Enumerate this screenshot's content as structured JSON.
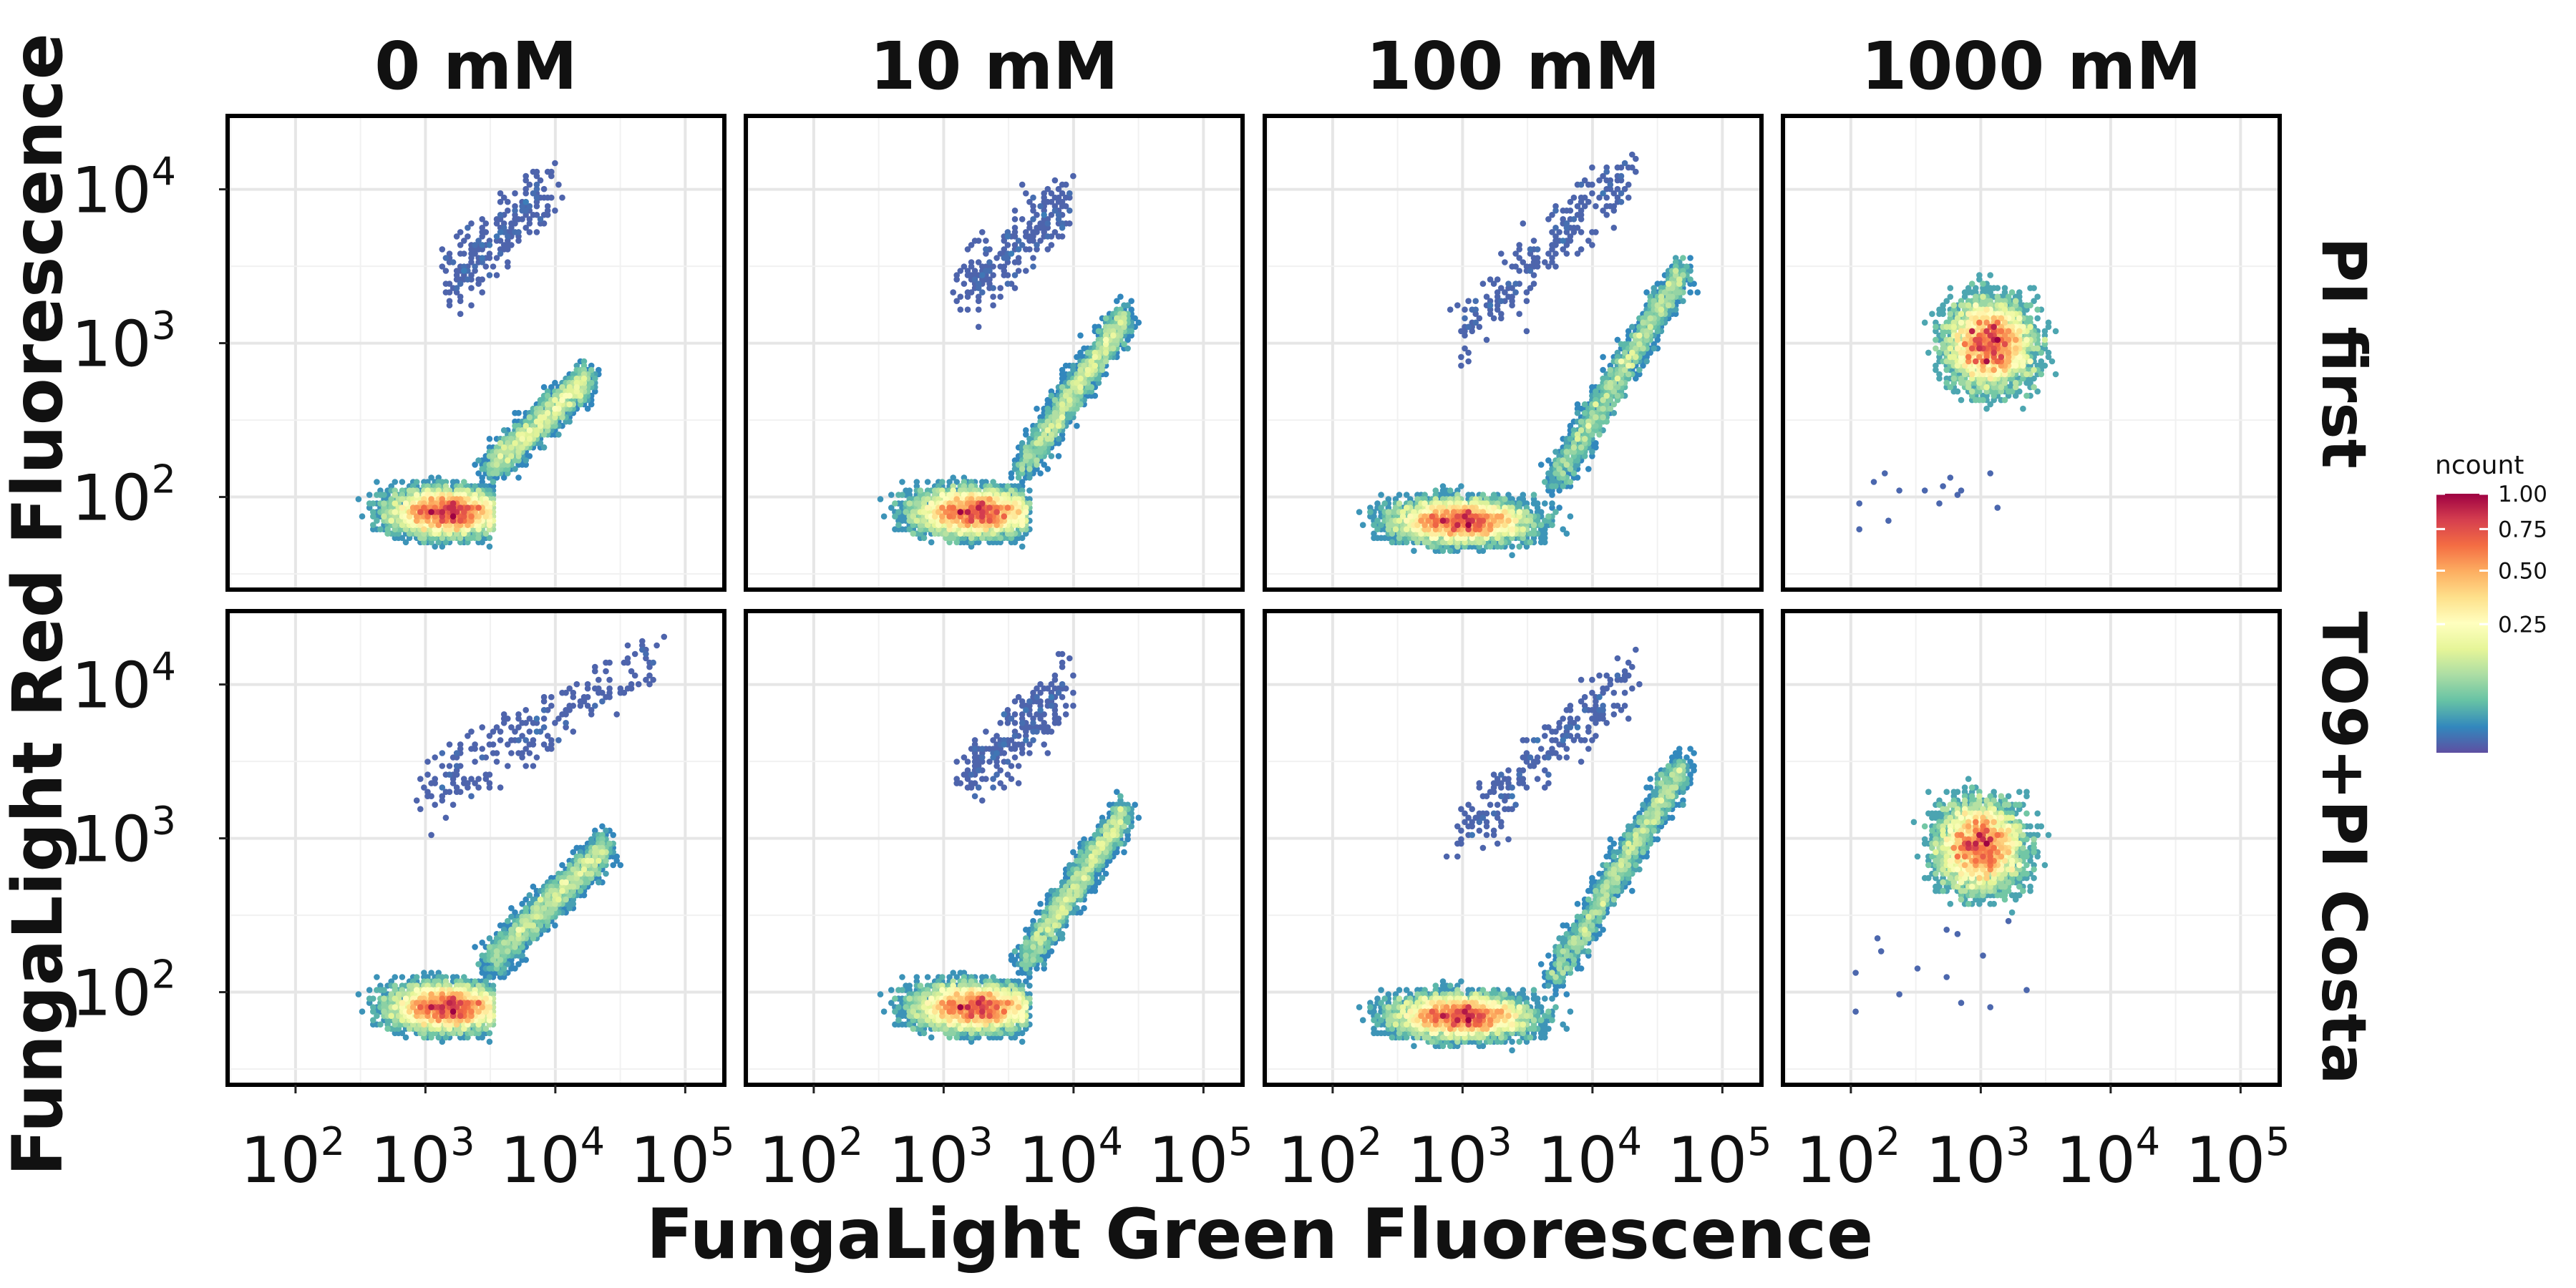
{
  "chart_data": {
    "type": "heatmap",
    "subtype": "faceted hexbin density (log-log)",
    "xlabel": "FungaLight Green Fluorescence",
    "ylabel": "FungaLight Red Fluorescence",
    "x_scale": "log10",
    "y_scale": "log10",
    "xlim": [
      30,
      200000
    ],
    "ylim": [
      25,
      30000
    ],
    "x_ticks": [
      100,
      1000,
      10000,
      100000
    ],
    "y_ticks": [
      100,
      1000,
      10000
    ],
    "x_tick_labels": [
      {
        "base": "10",
        "exp": "2"
      },
      {
        "base": "10",
        "exp": "3"
      },
      {
        "base": "10",
        "exp": "4"
      },
      {
        "base": "10",
        "exp": "5"
      }
    ],
    "y_tick_labels": [
      {
        "base": "10",
        "exp": "2"
      },
      {
        "base": "10",
        "exp": "3"
      },
      {
        "base": "10",
        "exp": "4"
      }
    ],
    "grid": true,
    "columns": [
      "0 mM",
      "10 mM",
      "100 mM",
      "1000 mM"
    ],
    "rows": [
      "PI first",
      "TO9+PI Costa"
    ],
    "legend": {
      "title": "ncount",
      "placement": "right",
      "ticks": [
        1.0,
        0.75,
        0.5,
        0.25
      ],
      "tick_labels": [
        "1.00",
        "0.75",
        "0.50",
        "0.25"
      ],
      "colorscale": [
        "#5e4fa2",
        "#3288bd",
        "#66c2a5",
        "#abdda4",
        "#e6f598",
        "#ffffbf",
        "#fee08b",
        "#fdae61",
        "#f46d43",
        "#d53e4f",
        "#9e0142"
      ]
    },
    "panels": [
      {
        "row": "PI first",
        "column": "0 mM",
        "live_population": {
          "x_range": [
            60,
            3000
          ],
          "y_range": [
            40,
            120
          ],
          "peak": [
            1500,
            80
          ]
        },
        "diagonal_tail": {
          "from": [
            3000,
            150
          ],
          "to": [
            18000,
            600
          ]
        },
        "dead_population": {
          "x_range": [
            1500,
            9000
          ],
          "y_range": [
            1500,
            10000
          ]
        }
      },
      {
        "row": "PI first",
        "column": "10 mM",
        "live_population": {
          "x_range": [
            60,
            4000
          ],
          "y_range": [
            40,
            120
          ],
          "peak": [
            1800,
            80
          ]
        },
        "diagonal_tail": {
          "from": [
            4000,
            150
          ],
          "to": [
            25000,
            1500
          ]
        },
        "dead_population": {
          "x_range": [
            1500,
            9000
          ],
          "y_range": [
            1500,
            8000
          ]
        }
      },
      {
        "row": "PI first",
        "column": "100 mM",
        "live_population": {
          "x_range": [
            60,
            6000
          ],
          "y_range": [
            40,
            110
          ],
          "peak": [
            1000,
            70
          ]
        },
        "diagonal_tail": {
          "from": [
            5000,
            120
          ],
          "to": [
            50000,
            3000
          ]
        },
        "dead_population": {
          "x_range": [
            1000,
            20000
          ],
          "y_range": [
            500,
            15000
          ]
        }
      },
      {
        "row": "PI first",
        "column": "1000 mM",
        "main_population": {
          "x_range": [
            200,
            5000
          ],
          "y_range": [
            300,
            5000
          ],
          "peak": [
            1200,
            1000
          ]
        },
        "outliers": {
          "x_range": [
            100,
            2000
          ],
          "y_range": [
            60,
            150
          ]
        }
      },
      {
        "row": "TO9+PI Costa",
        "column": "0 mM",
        "live_population": {
          "x_range": [
            60,
            3000
          ],
          "y_range": [
            40,
            120
          ],
          "peak": [
            1500,
            80
          ]
        },
        "diagonal_tail": {
          "from": [
            3000,
            150
          ],
          "to": [
            25000,
            900
          ]
        },
        "dead_population": {
          "x_range": [
            1000,
            60000
          ],
          "y_range": [
            1000,
            15000
          ]
        }
      },
      {
        "row": "TO9+PI Costa",
        "column": "10 mM",
        "live_population": {
          "x_range": [
            60,
            4000
          ],
          "y_range": [
            40,
            120
          ],
          "peak": [
            1800,
            80
          ]
        },
        "diagonal_tail": {
          "from": [
            4000,
            150
          ],
          "to": [
            25000,
            1500
          ]
        },
        "dead_population": {
          "x_range": [
            1500,
            9000
          ],
          "y_range": [
            1500,
            10000
          ]
        }
      },
      {
        "row": "TO9+PI Costa",
        "column": "100 mM",
        "live_population": {
          "x_range": [
            60,
            6000
          ],
          "y_range": [
            40,
            110
          ],
          "peak": [
            1000,
            70
          ]
        },
        "diagonal_tail": {
          "from": [
            5000,
            120
          ],
          "to": [
            50000,
            3000
          ]
        },
        "dead_population": {
          "x_range": [
            1000,
            20000
          ],
          "y_range": [
            500,
            12000
          ]
        }
      },
      {
        "row": "TO9+PI Costa",
        "column": "1000 mM",
        "main_population": {
          "x_range": [
            200,
            5000
          ],
          "y_range": [
            300,
            5000
          ],
          "peak": [
            1000,
            900
          ]
        },
        "outliers": {
          "x_range": [
            100,
            3000
          ],
          "y_range": [
            60,
            400
          ]
        }
      }
    ]
  }
}
